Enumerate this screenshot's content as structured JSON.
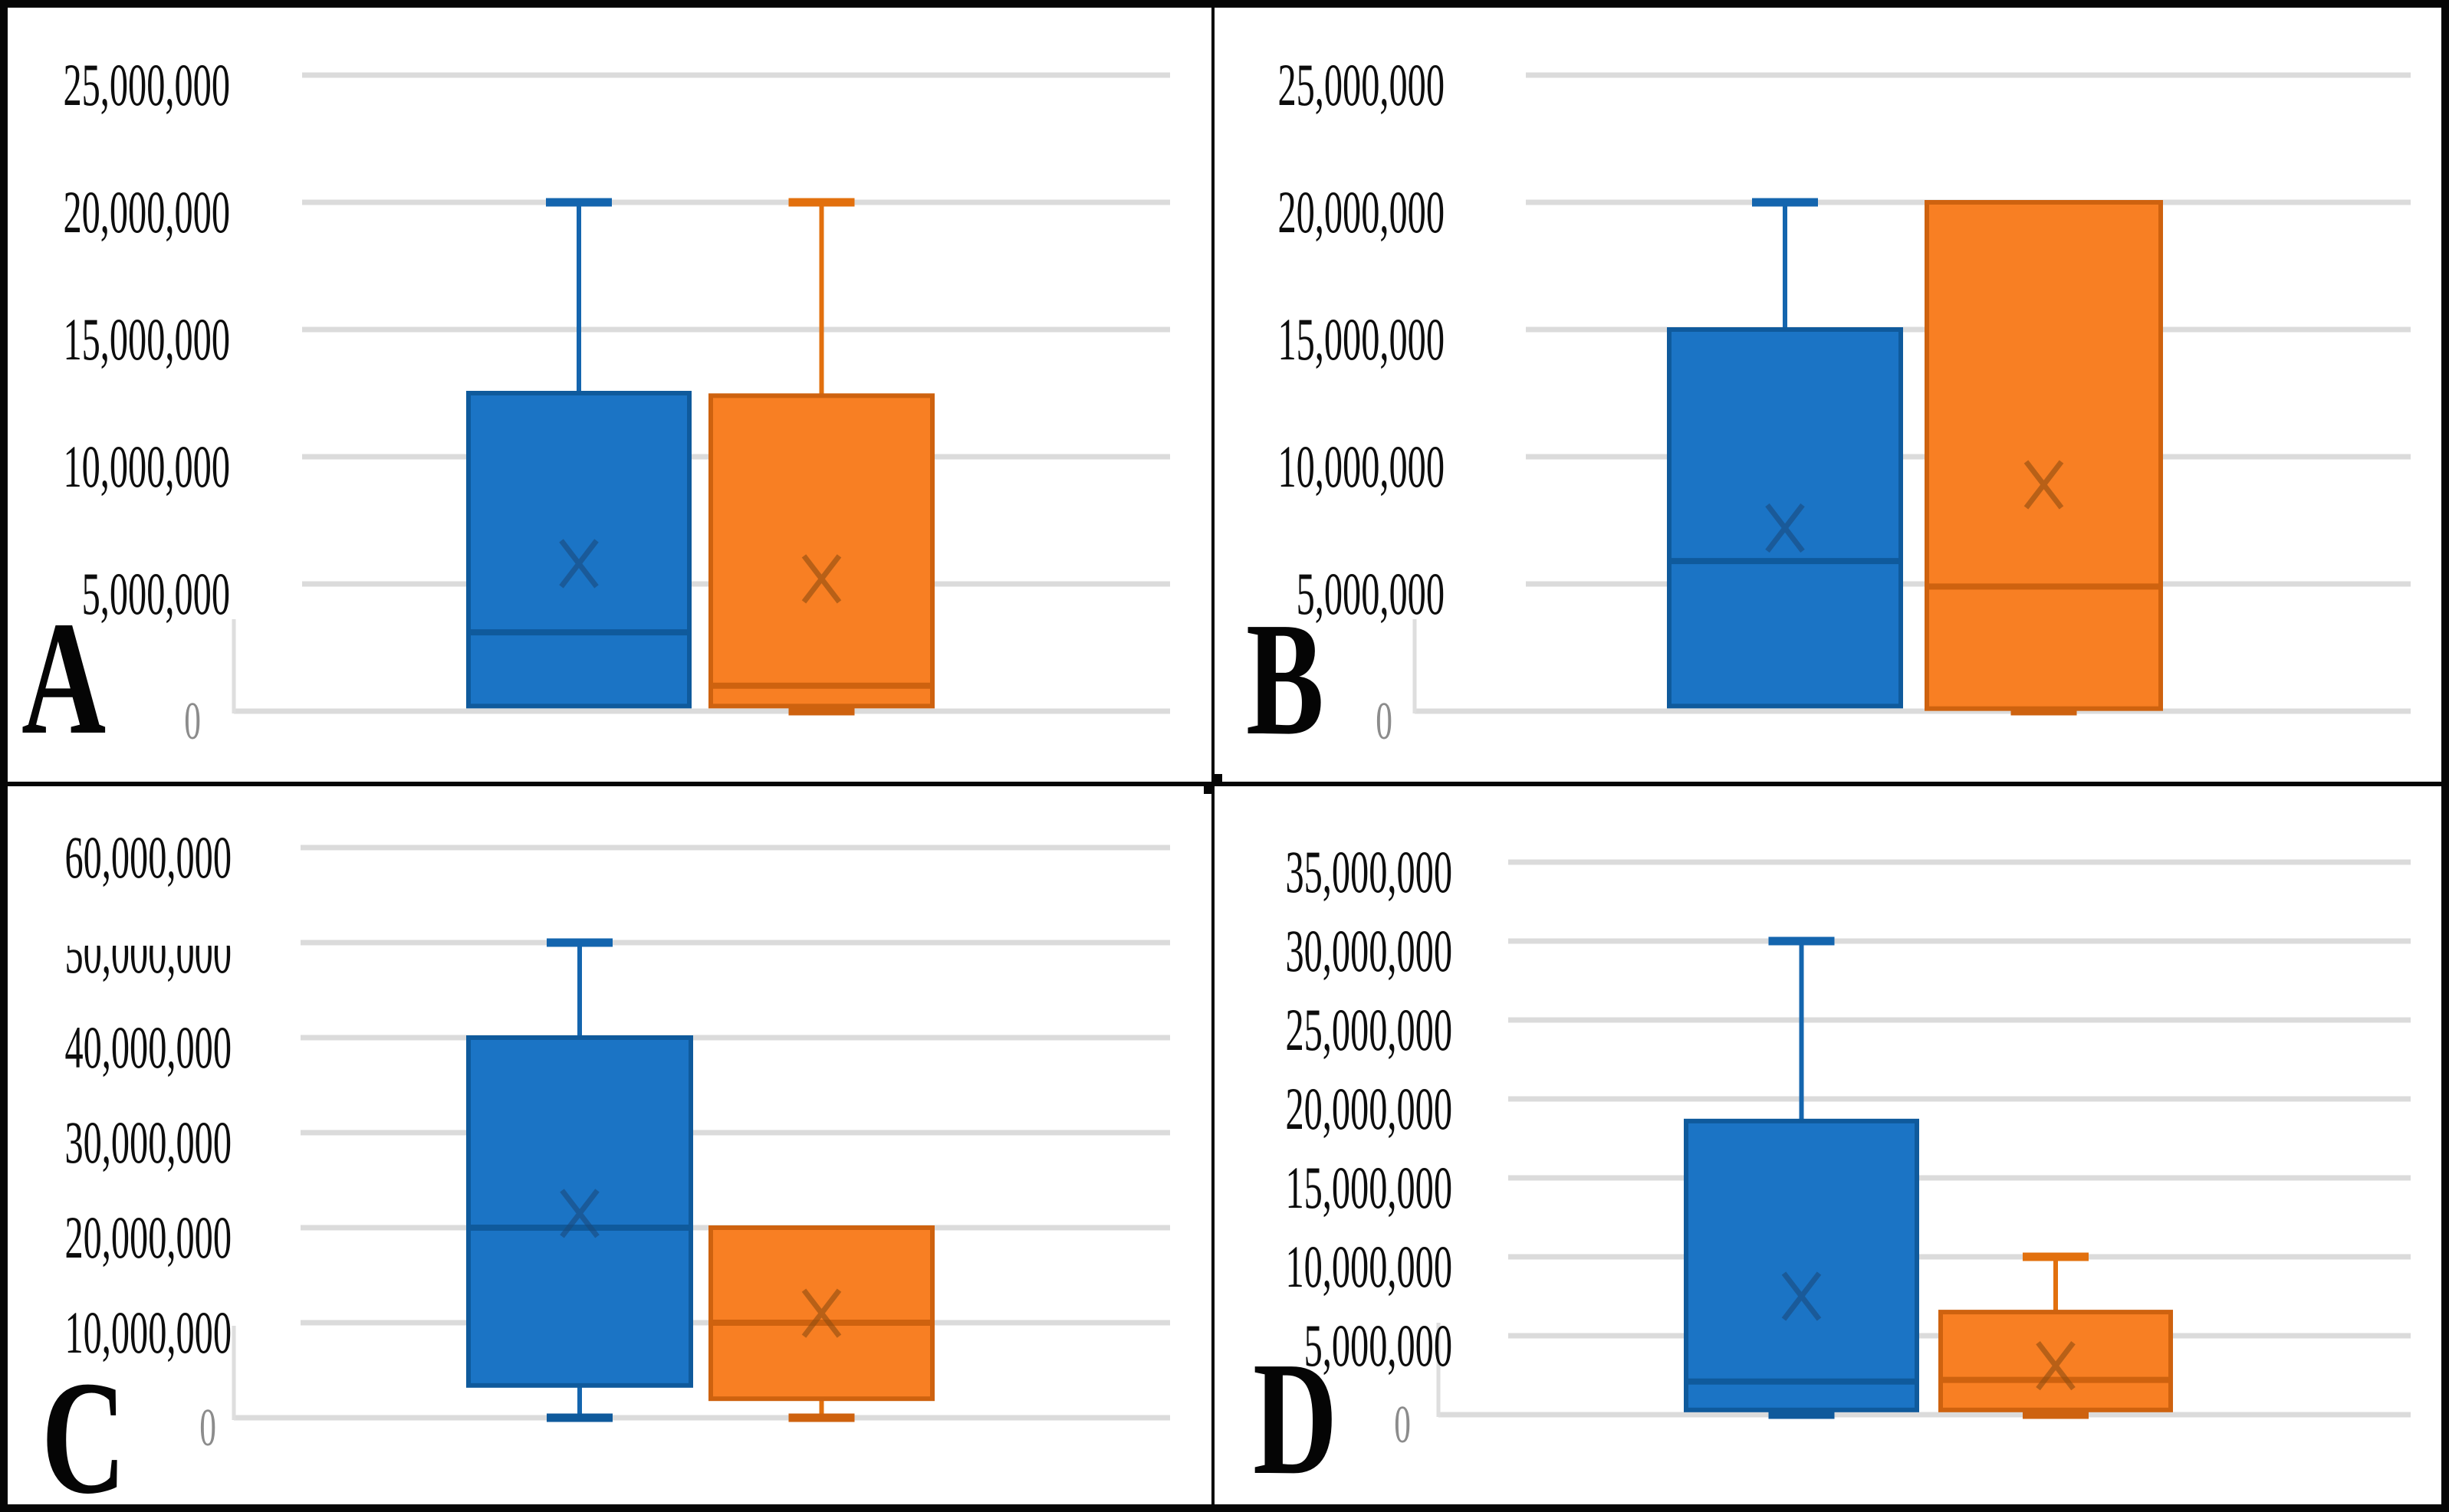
{
  "figure": {
    "background": "#FFFFFF",
    "panel_border_color": "#060606",
    "colors": {
      "blue_fill": "#1B74C5",
      "blue_edge": "#0F5A9C",
      "blue_whisker": "#1465AE",
      "blue_mean": "#1A4A7C",
      "orange_fill": "#F87F23",
      "orange_edge": "#CE620F",
      "orange_whisker": "#E2700E",
      "orange_mean": "#8F4D10",
      "gridline": "#DBDBDB",
      "axis_line": "#DEDEDE",
      "tick_label": "#0D0D0D",
      "zero_label": "#8C8C8C",
      "panel_letter": "#050505"
    }
  },
  "chart_data": [
    {
      "type": "box",
      "panel": "A",
      "grid": true,
      "legend_position": "none",
      "ylim": [
        0,
        25000000
      ],
      "ytick_step": 5000000,
      "ytick_labels": [
        "0",
        "5,000,000",
        "10,000,000",
        "15,000,000",
        "20,000,000",
        "25,000,000"
      ],
      "zero_label": "0",
      "series": [
        {
          "name": "box-blue",
          "color_key": "blue",
          "min": 200000,
          "q1": 200000,
          "median": 3100000,
          "q3": 12500000,
          "max": 20000000,
          "mean": 5800000
        },
        {
          "name": "box-orange",
          "color_key": "orange",
          "min": 0,
          "q1": 200000,
          "median": 1000000,
          "q3": 12400000,
          "max": 20000000,
          "mean": 5200000
        }
      ]
    },
    {
      "type": "box",
      "panel": "B",
      "grid": true,
      "legend_position": "none",
      "ylim": [
        0,
        25000000
      ],
      "ytick_step": 5000000,
      "ytick_labels": [
        "0",
        "5,000,000",
        "10,000,000",
        "15,000,000",
        "20,000,000",
        "25,000,000"
      ],
      "zero_label": "0",
      "series": [
        {
          "name": "box-blue",
          "color_key": "blue",
          "min": 200000,
          "q1": 200000,
          "median": 5900000,
          "q3": 15000000,
          "max": 20000000,
          "mean": 7200000
        },
        {
          "name": "box-orange",
          "color_key": "orange",
          "min": 0,
          "q1": 100000,
          "median": 4900000,
          "q3": 20000000,
          "max": 20000000,
          "mean": 8900000
        }
      ]
    },
    {
      "type": "box",
      "panel": "C",
      "grid": true,
      "legend_position": "none",
      "ylim": [
        0,
        60000000
      ],
      "ytick_step": 10000000,
      "ytick_labels": [
        "0",
        "10,000,000",
        "20,000,000",
        "30,000,000",
        "40,000,000",
        "50,000,000",
        "60,000,000"
      ],
      "zero_label": "0",
      "clipped_tick_label": "50,000,000",
      "series": [
        {
          "name": "box-blue",
          "color_key": "blue",
          "min": 0,
          "q1": 3400000,
          "median": 20000000,
          "q3": 40000000,
          "max": 50000000,
          "mean": 21500000
        },
        {
          "name": "box-orange",
          "color_key": "orange",
          "min": 0,
          "q1": 2000000,
          "median": 10000000,
          "q3": 20000000,
          "max": 20000000,
          "mean": 11000000
        }
      ]
    },
    {
      "type": "box",
      "panel": "D",
      "grid": true,
      "legend_position": "none",
      "ylim": [
        0,
        35000000
      ],
      "ytick_step": 5000000,
      "ytick_labels": [
        "0",
        "5,000,000",
        "10,000,000",
        "15,000,000",
        "20,000,000",
        "25,000,000",
        "30,000,000",
        "35,000,000"
      ],
      "zero_label": "0",
      "series": [
        {
          "name": "box-blue",
          "color_key": "blue",
          "min": 0,
          "q1": 300000,
          "median": 2100000,
          "q3": 18600000,
          "max": 30000000,
          "mean": 7500000
        },
        {
          "name": "box-orange",
          "color_key": "orange",
          "min": 0,
          "q1": 300000,
          "median": 2200000,
          "q3": 6500000,
          "max": 10000000,
          "mean": 3100000
        }
      ]
    }
  ]
}
